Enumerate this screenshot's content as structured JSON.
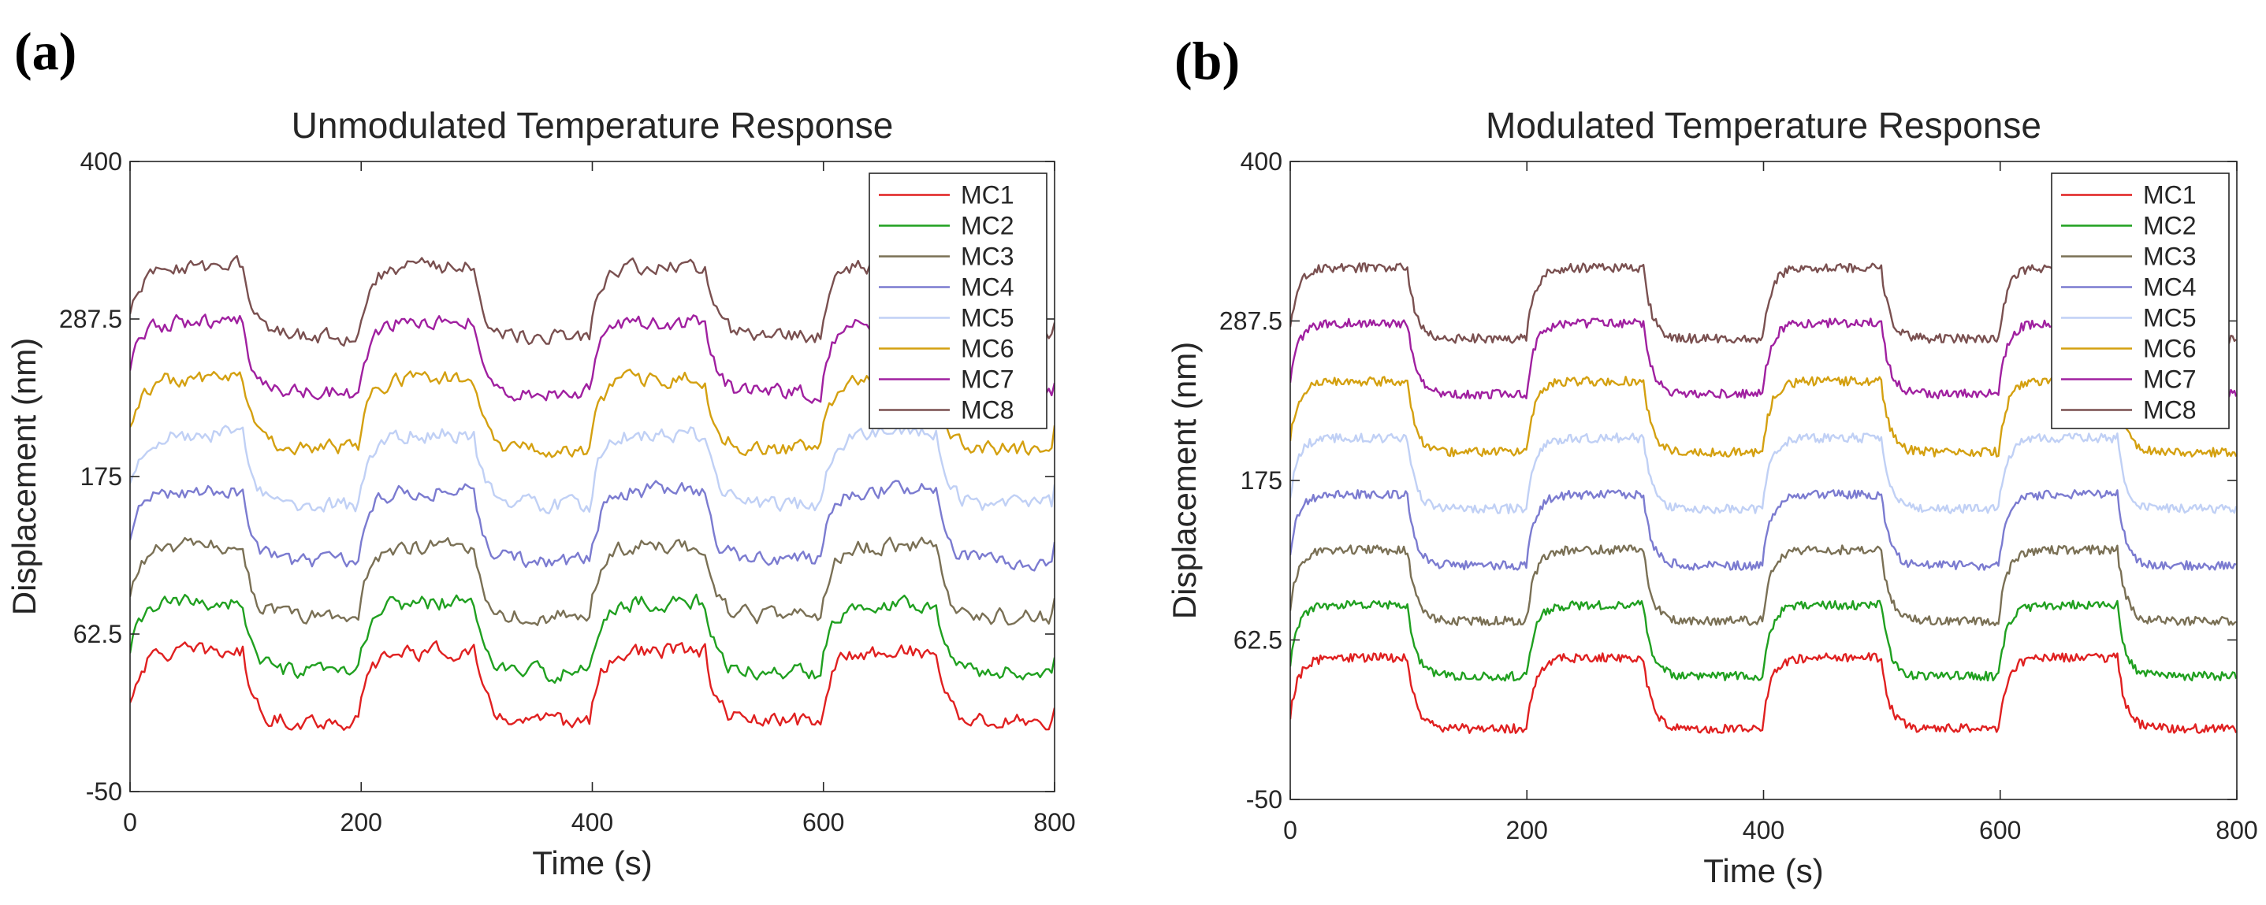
{
  "panels": [
    {
      "letter": "(a)",
      "chart_data": {
        "type": "line",
        "title": "Unmodulated Temperature Response",
        "xlabel": "Time (s)",
        "ylabel": "Displacement (nm)",
        "xlim": [
          0,
          800
        ],
        "ylim": [
          -50,
          400
        ],
        "xticks": [
          0,
          200,
          400,
          600,
          800
        ],
        "xtick_labels": [
          "0",
          "200",
          "400",
          "600",
          "800"
        ],
        "yticks": [
          -50,
          62.5,
          175,
          287.5,
          400
        ],
        "ytick_labels": [
          "-50",
          "62.5",
          "175",
          "287.5",
          "400"
        ],
        "grid": false,
        "legend_position": "top-right",
        "noise": "high",
        "step_period_s": 200,
        "high_phase_s": [
          0,
          100
        ],
        "series": [
          {
            "name": "MC1",
            "color": "#e02020",
            "low": 0,
            "high": 50
          },
          {
            "name": "MC2",
            "color": "#20a020",
            "low": 35,
            "high": 85
          },
          {
            "name": "MC3",
            "color": "#7a7055",
            "low": 75,
            "high": 125
          },
          {
            "name": "MC4",
            "color": "#7b7bd0",
            "low": 115,
            "high": 165
          },
          {
            "name": "MC5",
            "color": "#c0d0f5",
            "low": 155,
            "high": 205
          },
          {
            "name": "MC6",
            "color": "#d4a010",
            "low": 195,
            "high": 245
          },
          {
            "name": "MC7",
            "color": "#a020a0",
            "low": 235,
            "high": 285
          },
          {
            "name": "MC8",
            "color": "#7a5050",
            "low": 275,
            "high": 325
          }
        ]
      }
    },
    {
      "letter": "(b)",
      "chart_data": {
        "type": "line",
        "title": "Modulated Temperature Response",
        "xlabel": "Time (s)",
        "ylabel": "Displacement (nm)",
        "xlim": [
          0,
          800
        ],
        "ylim": [
          -50,
          400
        ],
        "xticks": [
          0,
          200,
          400,
          600,
          800
        ],
        "xtick_labels": [
          "0",
          "200",
          "400",
          "600",
          "800"
        ],
        "yticks": [
          -50,
          62.5,
          175,
          287.5,
          400
        ],
        "ytick_labels": [
          "-50",
          "62.5",
          "175",
          "287.5",
          "400"
        ],
        "grid": false,
        "legend_position": "top-right",
        "noise": "low",
        "step_period_s": 200,
        "high_phase_s": [
          0,
          100
        ],
        "series": [
          {
            "name": "MC1",
            "color": "#e02020",
            "low": 0,
            "high": 50
          },
          {
            "name": "MC2",
            "color": "#20a020",
            "low": 37,
            "high": 87
          },
          {
            "name": "MC3",
            "color": "#7a7055",
            "low": 76,
            "high": 126
          },
          {
            "name": "MC4",
            "color": "#7b7bd0",
            "low": 115,
            "high": 165
          },
          {
            "name": "MC5",
            "color": "#c0d0f5",
            "low": 155,
            "high": 205
          },
          {
            "name": "MC6",
            "color": "#d4a010",
            "low": 195,
            "high": 245
          },
          {
            "name": "MC7",
            "color": "#a020a0",
            "low": 236,
            "high": 286
          },
          {
            "name": "MC8",
            "color": "#7a5050",
            "low": 275,
            "high": 325
          }
        ]
      }
    }
  ]
}
